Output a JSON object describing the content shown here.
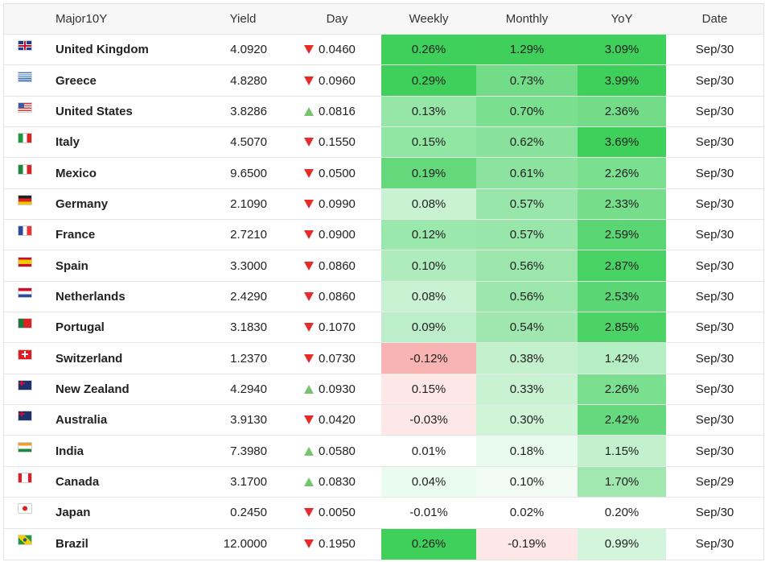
{
  "header": {
    "name": "Major10Y",
    "yield": "Yield",
    "day": "Day",
    "weekly": "Weekly",
    "monthly": "Monthly",
    "yoy": "YoY",
    "date": "Date"
  },
  "colors": {
    "up_arrow": "#76c56d",
    "down_arrow": "#e62b2b"
  },
  "rows": [
    {
      "country": "United Kingdom",
      "flag": "uk-flag-icon",
      "yield": "4.0920",
      "dir": "down",
      "day": "0.0460",
      "weekly": "0.26%",
      "monthly": "1.29%",
      "yoy": "3.09%",
      "date": "Sep/30"
    },
    {
      "country": "Greece",
      "flag": "greece-flag-icon",
      "yield": "4.8280",
      "dir": "down",
      "day": "0.0960",
      "weekly": "0.29%",
      "monthly": "0.73%",
      "yoy": "3.99%",
      "date": "Sep/30"
    },
    {
      "country": "United States",
      "flag": "us-flag-icon",
      "yield": "3.8286",
      "dir": "up",
      "day": "0.0816",
      "weekly": "0.13%",
      "monthly": "0.70%",
      "yoy": "2.36%",
      "date": "Sep/30"
    },
    {
      "country": "Italy",
      "flag": "italy-flag-icon",
      "yield": "4.5070",
      "dir": "down",
      "day": "0.1550",
      "weekly": "0.15%",
      "monthly": "0.62%",
      "yoy": "3.69%",
      "date": "Sep/30"
    },
    {
      "country": "Mexico",
      "flag": "mexico-flag-icon",
      "yield": "9.6500",
      "dir": "down",
      "day": "0.0500",
      "weekly": "0.19%",
      "monthly": "0.61%",
      "yoy": "2.26%",
      "date": "Sep/30"
    },
    {
      "country": "Germany",
      "flag": "germany-flag-icon",
      "yield": "2.1090",
      "dir": "down",
      "day": "0.0990",
      "weekly": "0.08%",
      "monthly": "0.57%",
      "yoy": "2.33%",
      "date": "Sep/30"
    },
    {
      "country": "France",
      "flag": "france-flag-icon",
      "yield": "2.7210",
      "dir": "down",
      "day": "0.0900",
      "weekly": "0.12%",
      "monthly": "0.57%",
      "yoy": "2.59%",
      "date": "Sep/30"
    },
    {
      "country": "Spain",
      "flag": "spain-flag-icon",
      "yield": "3.3000",
      "dir": "down",
      "day": "0.0860",
      "weekly": "0.10%",
      "monthly": "0.56%",
      "yoy": "2.87%",
      "date": "Sep/30"
    },
    {
      "country": "Netherlands",
      "flag": "netherlands-flag-icon",
      "yield": "2.4290",
      "dir": "down",
      "day": "0.0860",
      "weekly": "0.08%",
      "monthly": "0.56%",
      "yoy": "2.53%",
      "date": "Sep/30"
    },
    {
      "country": "Portugal",
      "flag": "portugal-flag-icon",
      "yield": "3.1830",
      "dir": "down",
      "day": "0.1070",
      "weekly": "0.09%",
      "monthly": "0.54%",
      "yoy": "2.85%",
      "date": "Sep/30"
    },
    {
      "country": "Switzerland",
      "flag": "switzerland-flag-icon",
      "yield": "1.2370",
      "dir": "down",
      "day": "0.0730",
      "weekly": "-0.12%",
      "monthly": "0.38%",
      "yoy": "1.42%",
      "date": "Sep/30"
    },
    {
      "country": "New Zealand",
      "flag": "new-zealand-flag-icon",
      "yield": "4.2940",
      "dir": "up",
      "day": "0.0930",
      "weekly": "0.15%",
      "monthly": "0.33%",
      "yoy": "2.26%",
      "date": "Sep/30"
    },
    {
      "country": "Australia",
      "flag": "australia-flag-icon",
      "yield": "3.9130",
      "dir": "down",
      "day": "0.0420",
      "weekly": "-0.03%",
      "monthly": "0.30%",
      "yoy": "2.42%",
      "date": "Sep/30"
    },
    {
      "country": "India",
      "flag": "india-flag-icon",
      "yield": "7.3980",
      "dir": "up",
      "day": "0.0580",
      "weekly": "0.01%",
      "monthly": "0.18%",
      "yoy": "1.15%",
      "date": "Sep/30"
    },
    {
      "country": "Canada",
      "flag": "canada-flag-icon",
      "yield": "3.1700",
      "dir": "up",
      "day": "0.0830",
      "weekly": "0.04%",
      "monthly": "0.10%",
      "yoy": "1.70%",
      "date": "Sep/29"
    },
    {
      "country": "Japan",
      "flag": "japan-flag-icon",
      "yield": "0.2450",
      "dir": "down",
      "day": "0.0050",
      "weekly": "-0.01%",
      "monthly": "0.02%",
      "yoy": "0.20%",
      "date": "Sep/30"
    },
    {
      "country": "Brazil",
      "flag": "brazil-flag-icon",
      "yield": "12.0000",
      "dir": "down",
      "day": "0.1950",
      "weekly": "0.26%",
      "monthly": "-0.19%",
      "yoy": "0.99%",
      "date": "Sep/30"
    }
  ]
}
